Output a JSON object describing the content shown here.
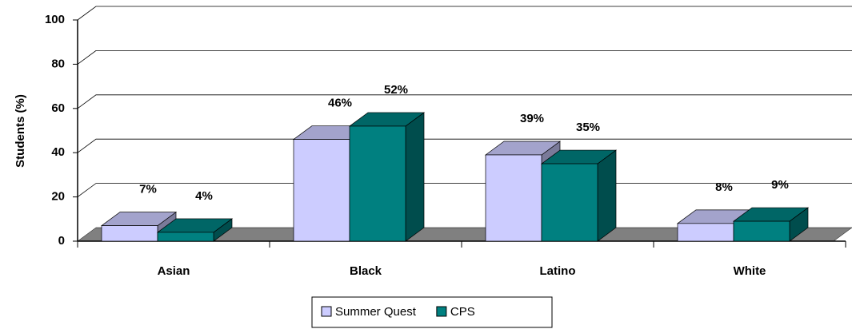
{
  "chart_data": {
    "type": "bar3d",
    "y_label": "Students (%)",
    "categories": [
      "Asian",
      "Black",
      "Latino",
      "White"
    ],
    "series": [
      {
        "name": "Summer Quest",
        "color": "#ccccff",
        "values": [
          7,
          46,
          39,
          8
        ],
        "value_labels": [
          "7%",
          "46%",
          "39%",
          "8%"
        ]
      },
      {
        "name": "CPS",
        "color": "#008080",
        "values": [
          4,
          52,
          35,
          9
        ],
        "value_labels": [
          "4%",
          "52%",
          "35%",
          "9%"
        ]
      }
    ],
    "ylim": [
      0,
      100
    ],
    "yticks": [
      0,
      20,
      40,
      60,
      80,
      100
    ],
    "grid": true,
    "legend": "bottom"
  }
}
